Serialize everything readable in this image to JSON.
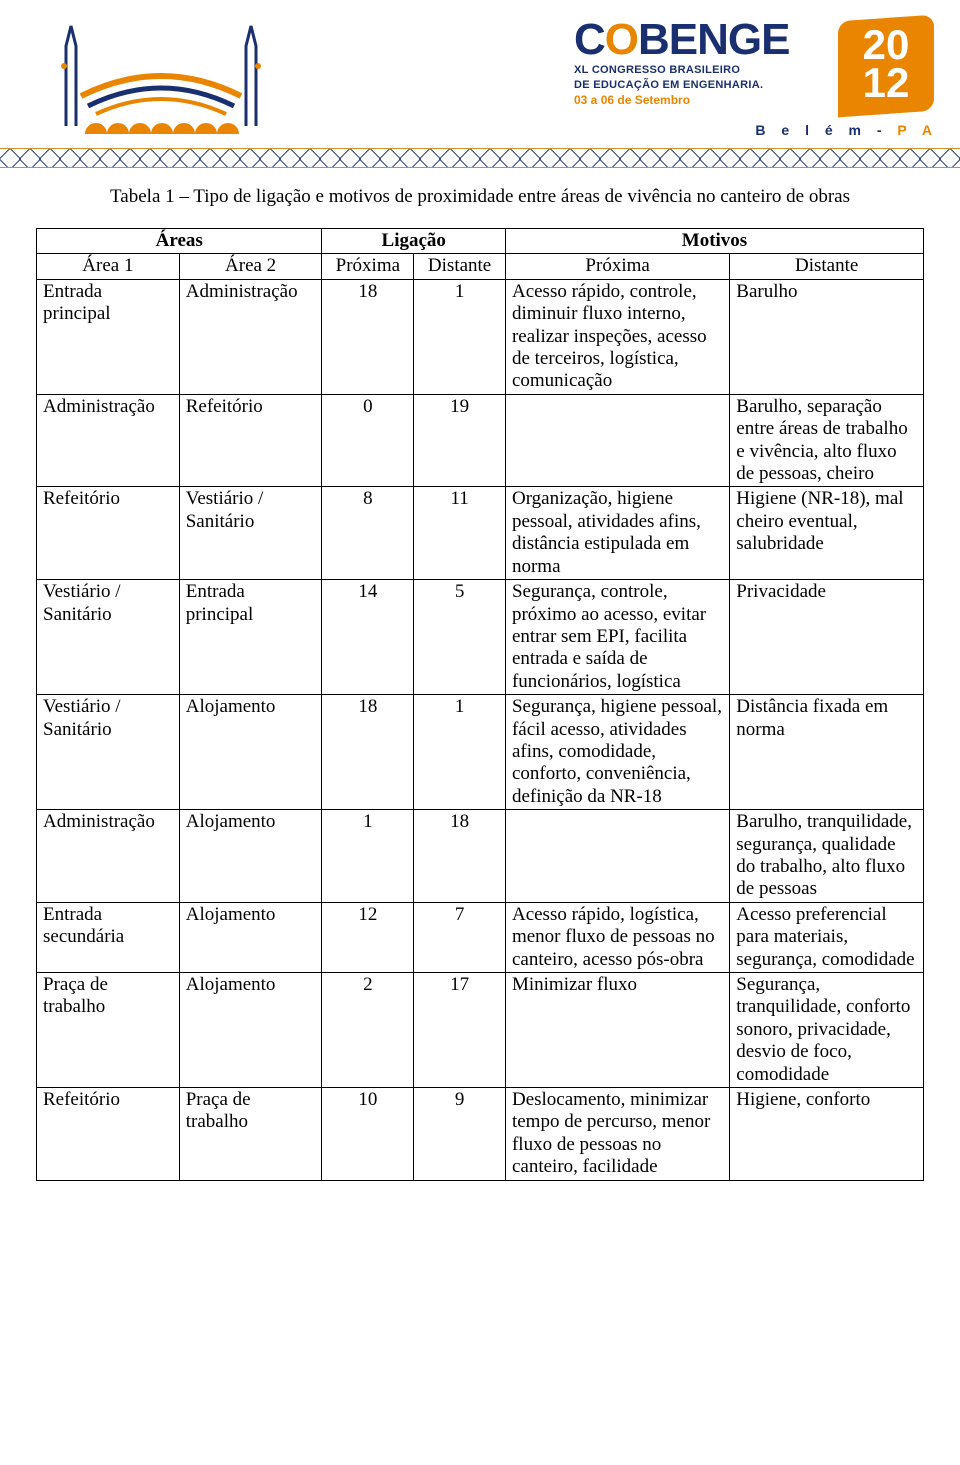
{
  "caption": "Tabela 1 – Tipo de ligação e motivos de proximidade entre áreas de vivência no canteiro de obras",
  "event": {
    "name_parts": [
      "C",
      "O",
      "B",
      "ENGE"
    ],
    "sub_line1": "XL CONGRESSO BRASILEIRO",
    "sub_line2": "DE EDUCAÇÃO EM ENGENHARIA.",
    "date": "03 a 06 de Setembro",
    "year_top": "20",
    "year_bottom": "12",
    "city": "B e l é m - ",
    "state": "P A"
  },
  "table": {
    "group_headers": {
      "areas": "Áreas",
      "ligacao": "Ligação",
      "motivos": "Motivos"
    },
    "sub_headers": {
      "area1": "Área 1",
      "area2": "Área 2",
      "proxima_n": "Próxima",
      "distante_n": "Distante",
      "proxima_m": "Próxima",
      "distante_m": "Distante"
    },
    "rows": [
      {
        "a1": "Entrada principal",
        "a2": "Administração",
        "p": "18",
        "d": "1",
        "mp": "Acesso rápido, controle, diminuir fluxo interno, realizar inspeções, acesso de terceiros, logística, comunicação",
        "md": "Barulho"
      },
      {
        "a1": "Administração",
        "a2": "Refeitório",
        "p": "0",
        "d": "19",
        "mp": "",
        "md": "Barulho, separação entre áreas de trabalho e vivência, alto fluxo de pessoas, cheiro"
      },
      {
        "a1": "Refeitório",
        "a2": "Vestiário / Sanitário",
        "p": "8",
        "d": "11",
        "mp": "Organização, higiene pessoal, atividades afins, distância estipulada em norma",
        "md": "Higiene (NR-18), mal cheiro eventual, salubridade"
      },
      {
        "a1": "Vestiário / Sanitário",
        "a2": "Entrada principal",
        "p": "14",
        "d": "5",
        "mp": "Segurança, controle, próximo ao acesso, evitar entrar sem EPI, facilita entrada e saída de funcionários, logística",
        "md": "Privacidade"
      },
      {
        "a1": "Vestiário / Sanitário",
        "a2": "Alojamento",
        "p": "18",
        "d": "1",
        "mp": "Segurança, higiene pessoal, fácil acesso, atividades afins, comodidade, conforto, conveniência, definição da NR-18",
        "md": "Distância fixada em norma"
      },
      {
        "a1": "Administração",
        "a2": "Alojamento",
        "p": "1",
        "d": "18",
        "mp": "",
        "md": "Barulho, tranquilidade, segurança, qualidade do trabalho, alto fluxo de pessoas"
      },
      {
        "a1": "Entrada secundária",
        "a2": "Alojamento",
        "p": "12",
        "d": "7",
        "mp": "Acesso rápido, logística, menor fluxo de pessoas no canteiro, acesso pós-obra",
        "md": "Acesso preferencial para materiais, segurança, comodidade"
      },
      {
        "a1": "Praça de trabalho",
        "a2": "Alojamento",
        "p": "2",
        "d": "17",
        "mp": "Minimizar fluxo",
        "md": "Segurança, tranquilidade, conforto sonoro, privacidade, desvio de foco, comodidade"
      },
      {
        "a1": "Refeitório",
        "a2": "Praça de trabalho",
        "p": "10",
        "d": "9",
        "mp": "Deslocamento, minimizar tempo de percurso, menor fluxo de pessoas no canteiro, facilidade",
        "md": "Higiene, conforto"
      }
    ],
    "colors": {
      "border": "#000000",
      "text": "#000000",
      "brand_blue": "#1a2f6f",
      "brand_orange": "#e98500"
    },
    "font_size_pt": 14
  }
}
